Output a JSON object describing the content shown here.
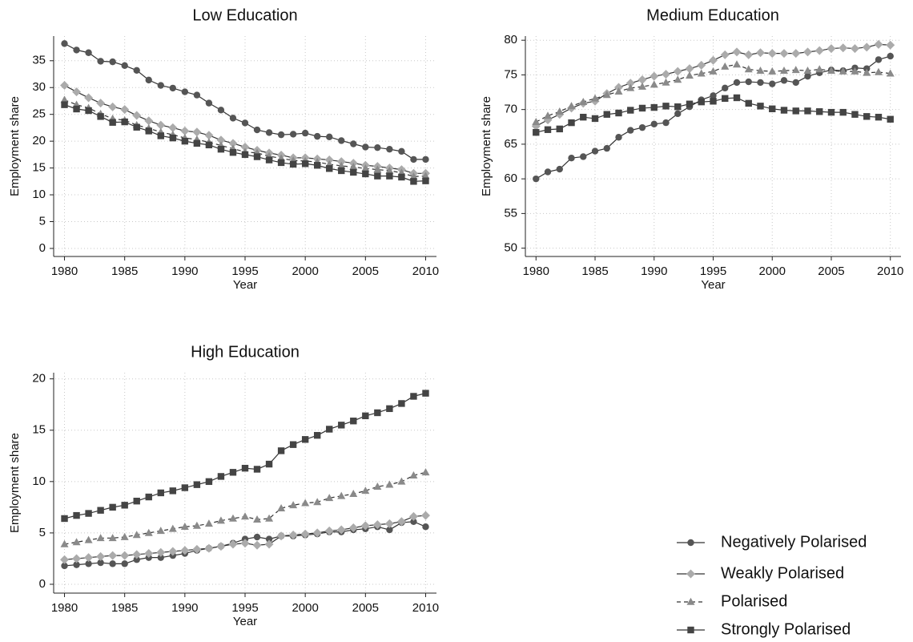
{
  "chart_data": [
    {
      "type": "line",
      "title": "Low Education",
      "xlabel": "Year",
      "ylabel": "Employment share",
      "x": [
        1980,
        1981,
        1982,
        1983,
        1984,
        1985,
        1986,
        1987,
        1988,
        1989,
        1990,
        1991,
        1992,
        1993,
        1994,
        1995,
        1996,
        1997,
        1998,
        1999,
        2000,
        2001,
        2002,
        2003,
        2004,
        2005,
        2006,
        2007,
        2008,
        2009,
        2010
      ],
      "xlim": [
        1979.1,
        2010.9
      ],
      "xticks": [
        1980,
        1985,
        1990,
        1995,
        2000,
        2005,
        2010
      ],
      "ylim": [
        -1.5,
        39.6
      ],
      "yticks": [
        0,
        5,
        10,
        15,
        20,
        25,
        30,
        35
      ],
      "grid": true,
      "series": [
        {
          "name": "Negatively Polarised",
          "color": "#555555",
          "marker": "circle",
          "line_style": "solid",
          "values": [
            38.2,
            37.0,
            36.5,
            34.9,
            34.8,
            34.1,
            33.2,
            31.4,
            30.4,
            29.9,
            29.2,
            28.6,
            27.1,
            25.8,
            24.3,
            23.4,
            22.1,
            21.6,
            21.2,
            21.3,
            21.5,
            20.9,
            20.8,
            20.1,
            19.5,
            18.9,
            18.8,
            18.5,
            18.1,
            16.6,
            16.6
          ]
        },
        {
          "name": "Weakly Polarised",
          "color": "#ababab",
          "marker": "diamond",
          "line_style": "solid",
          "values": [
            30.4,
            29.2,
            28.1,
            27.1,
            26.4,
            25.9,
            24.8,
            23.8,
            23.0,
            22.5,
            21.9,
            21.7,
            21.1,
            20.2,
            19.6,
            18.9,
            18.3,
            17.8,
            17.4,
            16.9,
            16.9,
            16.7,
            16.5,
            16.2,
            15.9,
            15.5,
            15.3,
            15.0,
            14.7,
            14.0,
            14.0
          ]
        },
        {
          "name": "Polarised",
          "color": "#8a8a8a",
          "marker": "triangle",
          "line_style": "dashed",
          "values": [
            27.7,
            26.8,
            26.2,
            25.1,
            24.2,
            23.9,
            23.0,
            22.4,
            21.7,
            21.2,
            20.6,
            20.3,
            19.8,
            19.2,
            18.6,
            18.0,
            17.8,
            17.2,
            16.8,
            16.4,
            16.3,
            16.1,
            15.7,
            15.4,
            15.2,
            14.9,
            14.7,
            14.5,
            14.1,
            13.4,
            13.5
          ]
        },
        {
          "name": "Strongly Polarised",
          "color": "#444444",
          "marker": "square",
          "line_style": "solid",
          "values": [
            26.8,
            26.0,
            25.7,
            24.6,
            23.5,
            23.6,
            22.6,
            21.9,
            21.0,
            20.6,
            20.0,
            19.6,
            19.3,
            18.5,
            17.9,
            17.5,
            17.1,
            16.5,
            16.0,
            15.7,
            15.8,
            15.5,
            14.9,
            14.5,
            14.2,
            13.9,
            13.5,
            13.5,
            13.3,
            12.5,
            12.6
          ]
        }
      ]
    },
    {
      "type": "line",
      "title": "Medium Education",
      "xlabel": "Year",
      "ylabel": "Employment share",
      "x": [
        1980,
        1981,
        1982,
        1983,
        1984,
        1985,
        1986,
        1987,
        1988,
        1989,
        1990,
        1991,
        1992,
        1993,
        1994,
        1995,
        1996,
        1997,
        1998,
        1999,
        2000,
        2001,
        2002,
        2003,
        2004,
        2005,
        2006,
        2007,
        2008,
        2009,
        2010
      ],
      "xlim": [
        1979.1,
        2010.9
      ],
      "xticks": [
        1980,
        1985,
        1990,
        1995,
        2000,
        2005,
        2010
      ],
      "ylim": [
        48.8,
        80.6
      ],
      "yticks": [
        50,
        55,
        60,
        65,
        70,
        75,
        80
      ],
      "grid": true,
      "series": [
        {
          "name": "Negatively Polarised",
          "color": "#555555",
          "marker": "circle",
          "line_style": "solid",
          "values": [
            60.0,
            61.0,
            61.4,
            63.0,
            63.2,
            64.0,
            64.4,
            66.0,
            67.0,
            67.4,
            67.9,
            68.1,
            69.4,
            70.4,
            71.4,
            72.0,
            73.1,
            73.9,
            74.0,
            73.9,
            73.7,
            74.2,
            73.9,
            74.8,
            75.3,
            75.7,
            75.6,
            76.0,
            75.9,
            77.2,
            77.7
          ]
        },
        {
          "name": "Weakly Polarised",
          "color": "#ababab",
          "marker": "diamond",
          "line_style": "solid",
          "values": [
            67.6,
            68.5,
            69.3,
            70.2,
            70.9,
            71.2,
            72.3,
            73.2,
            73.8,
            74.3,
            74.8,
            75.1,
            75.5,
            75.9,
            76.4,
            77.1,
            77.9,
            78.3,
            77.9,
            78.2,
            78.1,
            78.1,
            78.1,
            78.3,
            78.5,
            78.8,
            78.9,
            78.8,
            79.0,
            79.4,
            79.3
          ]
        },
        {
          "name": "Polarised",
          "color": "#8a8a8a",
          "marker": "triangle",
          "line_style": "dashed",
          "values": [
            68.2,
            69.1,
            69.7,
            70.5,
            71.1,
            71.6,
            72.1,
            72.6,
            73.1,
            73.3,
            73.6,
            73.9,
            74.3,
            74.9,
            75.2,
            75.5,
            76.2,
            76.5,
            75.8,
            75.6,
            75.5,
            75.6,
            75.7,
            75.6,
            75.8,
            75.6,
            75.5,
            75.5,
            75.3,
            75.4,
            75.2
          ]
        },
        {
          "name": "Strongly Polarised",
          "color": "#444444",
          "marker": "square",
          "line_style": "solid",
          "values": [
            66.7,
            67.1,
            67.2,
            68.1,
            68.9,
            68.7,
            69.3,
            69.5,
            69.9,
            70.2,
            70.3,
            70.5,
            70.4,
            70.8,
            71.1,
            71.2,
            71.6,
            71.7,
            70.9,
            70.5,
            70.1,
            69.9,
            69.8,
            69.8,
            69.7,
            69.6,
            69.6,
            69.3,
            69.0,
            68.9,
            68.6
          ]
        }
      ]
    },
    {
      "type": "line",
      "title": "High Education",
      "xlabel": "Year",
      "ylabel": "Employment share",
      "x": [
        1980,
        1981,
        1982,
        1983,
        1984,
        1985,
        1986,
        1987,
        1988,
        1989,
        1990,
        1991,
        1992,
        1993,
        1994,
        1995,
        1996,
        1997,
        1998,
        1999,
        2000,
        2001,
        2002,
        2003,
        2004,
        2005,
        2006,
        2007,
        2008,
        2009,
        2010
      ],
      "xlim": [
        1979.1,
        2010.9
      ],
      "xticks": [
        1980,
        1985,
        1990,
        1995,
        2000,
        2005,
        2010
      ],
      "ylim": [
        -0.86,
        20.6
      ],
      "yticks": [
        0,
        5,
        10,
        15,
        20
      ],
      "grid": true,
      "series": [
        {
          "name": "Negatively Polarised",
          "color": "#555555",
          "marker": "circle",
          "line_style": "solid",
          "values": [
            1.8,
            1.9,
            2.0,
            2.1,
            2.0,
            2.0,
            2.4,
            2.6,
            2.6,
            2.8,
            3.0,
            3.3,
            3.5,
            3.7,
            4.0,
            4.4,
            4.6,
            4.4,
            4.7,
            4.7,
            4.8,
            4.9,
            5.1,
            5.1,
            5.3,
            5.4,
            5.6,
            5.3,
            6.0,
            6.1,
            5.6
          ]
        },
        {
          "name": "Weakly Polarised",
          "color": "#ababab",
          "marker": "diamond",
          "line_style": "solid",
          "values": [
            2.4,
            2.5,
            2.6,
            2.7,
            2.8,
            2.8,
            2.9,
            3.0,
            3.1,
            3.2,
            3.3,
            3.4,
            3.5,
            3.7,
            3.9,
            4.0,
            3.8,
            3.9,
            4.7,
            4.8,
            4.9,
            5.0,
            5.2,
            5.3,
            5.5,
            5.7,
            5.8,
            5.9,
            6.1,
            6.6,
            6.7
          ]
        },
        {
          "name": "Polarised",
          "color": "#8a8a8a",
          "marker": "triangle",
          "line_style": "dashed",
          "values": [
            3.9,
            4.1,
            4.3,
            4.5,
            4.5,
            4.6,
            4.8,
            5.0,
            5.2,
            5.4,
            5.6,
            5.7,
            5.9,
            6.2,
            6.4,
            6.6,
            6.3,
            6.4,
            7.4,
            7.7,
            7.9,
            8.0,
            8.4,
            8.6,
            8.8,
            9.1,
            9.5,
            9.7,
            10.0,
            10.6,
            10.9
          ]
        },
        {
          "name": "Strongly Polarised",
          "color": "#444444",
          "marker": "square",
          "line_style": "solid",
          "values": [
            6.4,
            6.7,
            6.9,
            7.2,
            7.5,
            7.7,
            8.1,
            8.5,
            8.9,
            9.1,
            9.4,
            9.7,
            10.0,
            10.5,
            10.9,
            11.3,
            11.2,
            11.7,
            13.0,
            13.6,
            14.1,
            14.5,
            15.1,
            15.5,
            15.9,
            16.4,
            16.7,
            17.1,
            17.6,
            18.3,
            18.6
          ]
        }
      ]
    }
  ]
}
